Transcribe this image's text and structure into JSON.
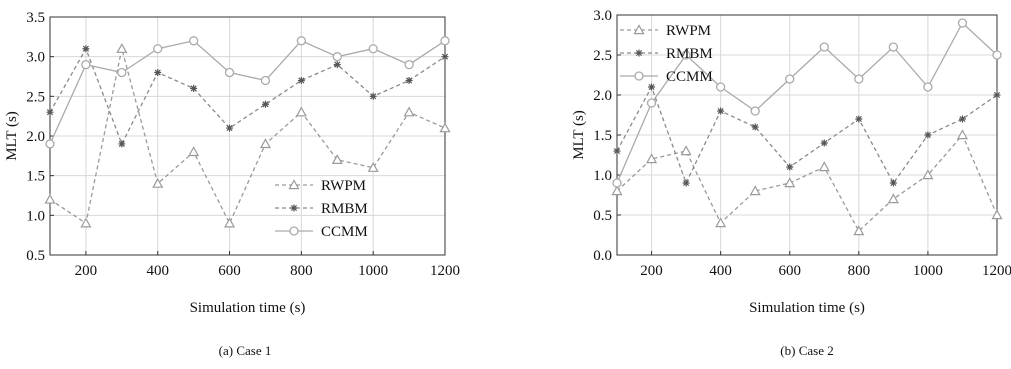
{
  "chart_data": [
    {
      "type": "line",
      "caption": "(a) Case 1",
      "xlabel": "Simulation time (s)",
      "ylabel": "MLT (s)",
      "xlim": [
        100,
        1200
      ],
      "ylim": [
        0.5,
        3.5
      ],
      "xticks": [
        200,
        400,
        600,
        800,
        1000,
        1200
      ],
      "yticks": [
        0.5,
        1.0,
        1.5,
        2.0,
        2.5,
        3.0,
        3.5
      ],
      "x": [
        100,
        200,
        300,
        400,
        500,
        600,
        700,
        800,
        900,
        1000,
        1100,
        1200
      ],
      "grid": true,
      "legend_position": "bottom-right",
      "series": [
        {
          "name": "RWPM",
          "marker": "triangle",
          "dash": true,
          "color": "#9a9a9a",
          "values": [
            1.2,
            0.9,
            3.1,
            1.4,
            1.8,
            0.9,
            1.9,
            2.3,
            1.7,
            1.6,
            2.3,
            2.1
          ]
        },
        {
          "name": "RMBM",
          "marker": "star",
          "dash": true,
          "color": "#8a8a8a",
          "values": [
            2.3,
            3.1,
            1.9,
            2.8,
            2.6,
            2.1,
            2.4,
            2.7,
            2.9,
            2.5,
            2.7,
            3.0
          ]
        },
        {
          "name": "CCMM",
          "marker": "circle",
          "dash": false,
          "color": "#aaaaaa",
          "values": [
            1.9,
            2.9,
            2.8,
            3.1,
            3.2,
            2.8,
            2.7,
            3.2,
            3.0,
            3.1,
            2.9,
            3.2
          ]
        }
      ]
    },
    {
      "type": "line",
      "caption": "(b) Case 2",
      "xlabel": "Simulation time (s)",
      "ylabel": "MLT (s)",
      "xlim": [
        100,
        1200
      ],
      "ylim": [
        0.0,
        3.0
      ],
      "xticks": [
        200,
        400,
        600,
        800,
        1000,
        1200
      ],
      "yticks": [
        0.0,
        0.5,
        1.0,
        1.5,
        2.0,
        2.5,
        3.0
      ],
      "x": [
        100,
        200,
        300,
        400,
        500,
        600,
        700,
        800,
        900,
        1000,
        1100,
        1200
      ],
      "grid": true,
      "legend_position": "top-left",
      "series": [
        {
          "name": "RWPM",
          "marker": "triangle",
          "dash": true,
          "color": "#9a9a9a",
          "values": [
            0.8,
            1.2,
            1.3,
            0.4,
            0.8,
            0.9,
            1.1,
            0.3,
            0.7,
            1.0,
            1.5,
            0.5
          ]
        },
        {
          "name": "RMBM",
          "marker": "star",
          "dash": true,
          "color": "#8a8a8a",
          "values": [
            1.3,
            2.1,
            0.9,
            1.8,
            1.6,
            1.1,
            1.4,
            1.7,
            0.9,
            1.5,
            1.7,
            2.0
          ]
        },
        {
          "name": "CCMM",
          "marker": "circle",
          "dash": false,
          "color": "#aaaaaa",
          "values": [
            0.9,
            1.9,
            2.5,
            2.1,
            1.8,
            2.2,
            2.6,
            2.2,
            2.6,
            2.1,
            2.9,
            2.5
          ]
        }
      ]
    }
  ]
}
